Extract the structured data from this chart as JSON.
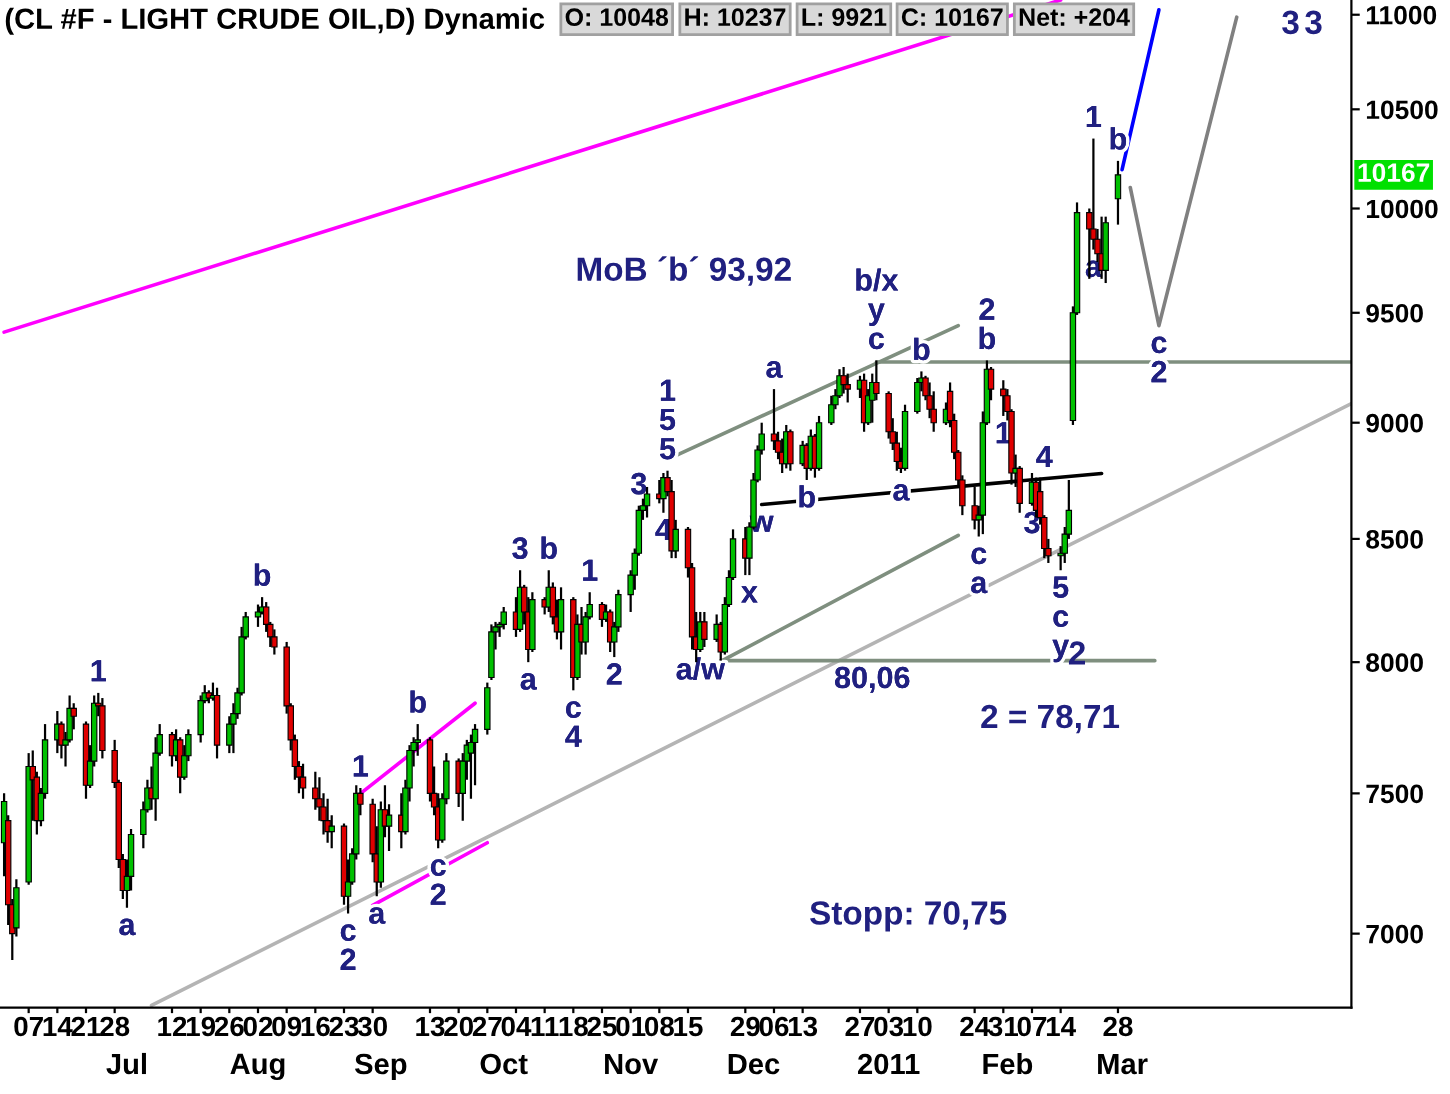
{
  "chart_data": {
    "type": "candlestick",
    "title": "(CL #F - LIGHT CRUDE OIL,D) Dynamic",
    "log": true,
    "legend": false,
    "grid": false,
    "ylim": [
      6750,
      11080
    ],
    "yticks": [
      7000,
      7500,
      8000,
      8500,
      9000,
      9500,
      10000,
      10500,
      11000
    ],
    "xlim": [
      "2010-05-31",
      "2011-04-26"
    ],
    "xticks": [
      {
        "value": "2010-06-07",
        "label": "07"
      },
      {
        "value": "2010-06-14",
        "label": "14"
      },
      {
        "value": "2010-06-21",
        "label": "21"
      },
      {
        "value": "2010-06-28",
        "label": "28"
      },
      {
        "value": "2010-07-12",
        "label": "12"
      },
      {
        "value": "2010-07-19",
        "label": "19"
      },
      {
        "value": "2010-07-26",
        "label": "26"
      },
      {
        "value": "2010-08-02",
        "label": "02"
      },
      {
        "value": "2010-08-09",
        "label": "09"
      },
      {
        "value": "2010-08-16",
        "label": "16"
      },
      {
        "value": "2010-08-23",
        "label": "23"
      },
      {
        "value": "2010-08-30",
        "label": "30"
      },
      {
        "value": "2010-09-13",
        "label": "13"
      },
      {
        "value": "2010-09-20",
        "label": "20"
      },
      {
        "value": "2010-09-27",
        "label": "27"
      },
      {
        "value": "2010-10-04",
        "label": "04"
      },
      {
        "value": "2010-10-11",
        "label": "11"
      },
      {
        "value": "2010-10-18",
        "label": "18"
      },
      {
        "value": "2010-10-25",
        "label": "25"
      },
      {
        "value": "2010-11-01",
        "label": "01"
      },
      {
        "value": "2010-11-08",
        "label": "08"
      },
      {
        "value": "2010-11-15",
        "label": "15"
      },
      {
        "value": "2010-11-29",
        "label": "29"
      },
      {
        "value": "2010-12-06",
        "label": "06"
      },
      {
        "value": "2010-12-13",
        "label": "13"
      },
      {
        "value": "2010-12-27",
        "label": "27"
      },
      {
        "value": "2011-01-03",
        "label": "03"
      },
      {
        "value": "2011-01-10",
        "label": "10"
      },
      {
        "value": "2011-01-24",
        "label": "24"
      },
      {
        "value": "2011-01-31",
        "label": "31"
      },
      {
        "value": "2011-02-07",
        "label": "07"
      },
      {
        "value": "2011-02-14",
        "label": "14"
      },
      {
        "value": "2011-02-28",
        "label": "28"
      }
    ],
    "x": [
      "2010-06-01",
      "2010-06-02",
      "2010-06-03",
      "2010-06-04",
      "2010-06-07",
      "2010-06-08",
      "2010-06-09",
      "2010-06-10",
      "2010-06-11",
      "2010-06-14",
      "2010-06-15",
      "2010-06-16",
      "2010-06-17",
      "2010-06-18",
      "2010-06-21",
      "2010-06-22",
      "2010-06-23",
      "2010-06-24",
      "2010-06-25",
      "2010-06-28",
      "2010-06-29",
      "2010-06-30",
      "2010-07-01",
      "2010-07-02",
      "2010-07-05",
      "2010-07-06",
      "2010-07-07",
      "2010-07-08",
      "2010-07-09",
      "2010-07-12",
      "2010-07-13",
      "2010-07-14",
      "2010-07-15",
      "2010-07-16",
      "2010-07-19",
      "2010-07-20",
      "2010-07-21",
      "2010-07-22",
      "2010-07-23",
      "2010-07-26",
      "2010-07-27",
      "2010-07-28",
      "2010-07-29",
      "2010-07-30",
      "2010-08-02",
      "2010-08-03",
      "2010-08-04",
      "2010-08-05",
      "2010-08-06",
      "2010-08-09",
      "2010-08-10",
      "2010-08-11",
      "2010-08-12",
      "2010-08-13",
      "2010-08-16",
      "2010-08-17",
      "2010-08-18",
      "2010-08-19",
      "2010-08-20",
      "2010-08-23",
      "2010-08-24",
      "2010-08-25",
      "2010-08-26",
      "2010-08-27",
      "2010-08-30",
      "2010-08-31",
      "2010-09-01",
      "2010-09-02",
      "2010-09-03",
      "2010-09-06",
      "2010-09-07",
      "2010-09-08",
      "2010-09-09",
      "2010-09-10",
      "2010-09-13",
      "2010-09-14",
      "2010-09-15",
      "2010-09-16",
      "2010-09-17",
      "2010-09-20",
      "2010-09-21",
      "2010-09-22",
      "2010-09-23",
      "2010-09-24",
      "2010-09-27",
      "2010-09-28",
      "2010-09-29",
      "2010-09-30",
      "2010-10-01",
      "2010-10-04",
      "2010-10-05",
      "2010-10-06",
      "2010-10-07",
      "2010-10-08",
      "2010-10-11",
      "2010-10-12",
      "2010-10-13",
      "2010-10-14",
      "2010-10-15",
      "2010-10-18",
      "2010-10-19",
      "2010-10-20",
      "2010-10-21",
      "2010-10-22",
      "2010-10-25",
      "2010-10-26",
      "2010-10-27",
      "2010-10-28",
      "2010-10-29",
      "2010-11-01",
      "2010-11-02",
      "2010-11-03",
      "2010-11-04",
      "2010-11-05",
      "2010-11-08",
      "2010-11-09",
      "2010-11-10",
      "2010-11-11",
      "2010-11-12",
      "2010-11-15",
      "2010-11-16",
      "2010-11-17",
      "2010-11-18",
      "2010-11-19",
      "2010-11-22",
      "2010-11-23",
      "2010-11-24",
      "2010-11-25",
      "2010-11-26",
      "2010-11-29",
      "2010-11-30",
      "2010-12-01",
      "2010-12-02",
      "2010-12-03",
      "2010-12-06",
      "2010-12-07",
      "2010-12-08",
      "2010-12-09",
      "2010-12-10",
      "2010-12-13",
      "2010-12-14",
      "2010-12-15",
      "2010-12-16",
      "2010-12-17",
      "2010-12-20",
      "2010-12-21",
      "2010-12-22",
      "2010-12-23",
      "2010-12-24",
      "2010-12-27",
      "2010-12-28",
      "2010-12-29",
      "2010-12-30",
      "2010-12-31",
      "2011-01-03",
      "2011-01-04",
      "2011-01-05",
      "2011-01-06",
      "2011-01-07",
      "2011-01-10",
      "2011-01-11",
      "2011-01-12",
      "2011-01-13",
      "2011-01-14",
      "2011-01-17",
      "2011-01-18",
      "2011-01-19",
      "2011-01-20",
      "2011-01-21",
      "2011-01-24",
      "2011-01-25",
      "2011-01-26",
      "2011-01-27",
      "2011-01-28",
      "2011-01-31",
      "2011-02-01",
      "2011-02-02",
      "2011-02-03",
      "2011-02-04",
      "2011-02-07",
      "2011-02-08",
      "2011-02-09",
      "2011-02-10",
      "2011-02-11",
      "2011-02-14",
      "2011-02-15",
      "2011-02-16",
      "2011-02-17",
      "2011-02-18",
      "2011-02-21",
      "2011-02-22",
      "2011-02-23",
      "2011-02-24",
      "2011-02-25",
      "2011-02-28"
    ],
    "ohlc": [
      [
        7320,
        7500,
        7200,
        7470
      ],
      [
        7400,
        7420,
        7030,
        7100
      ],
      [
        7100,
        7120,
        6910,
        7000
      ],
      [
        7020,
        7190,
        6990,
        7160
      ],
      [
        7180,
        7650,
        7170,
        7600
      ],
      [
        7600,
        7660,
        7400,
        7550
      ],
      [
        7560,
        7580,
        7350,
        7400
      ],
      [
        7400,
        7520,
        7380,
        7500
      ],
      [
        7500,
        7760,
        7480,
        7700
      ],
      [
        7700,
        7810,
        7650,
        7760
      ],
      [
        7760,
        7770,
        7630,
        7680
      ],
      [
        7680,
        7730,
        7600,
        7700
      ],
      [
        7700,
        7870,
        7690,
        7820
      ],
      [
        7820,
        7840,
        7740,
        7790
      ],
      [
        7760,
        7770,
        7480,
        7530
      ],
      [
        7530,
        7680,
        7520,
        7620
      ],
      [
        7620,
        7870,
        7600,
        7840
      ],
      [
        7840,
        7880,
        7790,
        7830
      ],
      [
        7830,
        7860,
        7630,
        7660
      ],
      [
        7660,
        7700,
        7520,
        7540
      ],
      [
        7540,
        7550,
        7230,
        7260
      ],
      [
        7260,
        7280,
        7120,
        7150
      ],
      [
        7150,
        7260,
        7090,
        7200
      ],
      [
        7200,
        7370,
        7150,
        7350
      ],
      [
        7350,
        7470,
        7300,
        7440
      ],
      [
        7440,
        7550,
        7430,
        7520
      ],
      [
        7520,
        7600,
        7440,
        7480
      ],
      [
        7480,
        7710,
        7400,
        7650
      ],
      [
        7650,
        7760,
        7640,
        7720
      ],
      [
        7720,
        7730,
        7600,
        7640
      ],
      [
        7640,
        7740,
        7620,
        7700
      ],
      [
        7700,
        7710,
        7500,
        7560
      ],
      [
        7560,
        7680,
        7550,
        7640
      ],
      [
        7640,
        7740,
        7620,
        7720
      ],
      [
        7720,
        7870,
        7690,
        7850
      ],
      [
        7850,
        7910,
        7840,
        7880
      ],
      [
        7880,
        7890,
        7840,
        7860
      ],
      [
        7860,
        7920,
        7850,
        7870
      ],
      [
        7870,
        7900,
        7630,
        7680
      ],
      [
        7680,
        7790,
        7650,
        7760
      ],
      [
        7760,
        7840,
        7650,
        7800
      ],
      [
        7800,
        7900,
        7780,
        7880
      ],
      [
        7880,
        8140,
        7870,
        8100
      ],
      [
        8100,
        8200,
        8090,
        8180
      ],
      [
        8180,
        8230,
        8140,
        8200
      ],
      [
        8200,
        8260,
        8190,
        8220
      ],
      [
        8220,
        8240,
        8120,
        8150
      ],
      [
        8150,
        8160,
        8060,
        8100
      ],
      [
        8100,
        8130,
        8030,
        8060
      ],
      [
        8060,
        8080,
        7800,
        7830
      ],
      [
        7830,
        7840,
        7660,
        7700
      ],
      [
        7700,
        7720,
        7550,
        7600
      ],
      [
        7600,
        7620,
        7500,
        7560
      ],
      [
        7560,
        7610,
        7480,
        7520
      ],
      [
        7520,
        7580,
        7440,
        7480
      ],
      [
        7480,
        7560,
        7400,
        7450
      ],
      [
        7450,
        7500,
        7350,
        7400
      ],
      [
        7400,
        7480,
        7320,
        7360
      ],
      [
        7360,
        7420,
        7300,
        7380
      ],
      [
        7380,
        7390,
        7100,
        7130
      ],
      [
        7130,
        7260,
        7070,
        7180
      ],
      [
        7180,
        7300,
        7170,
        7280
      ],
      [
        7280,
        7530,
        7260,
        7500
      ],
      [
        7500,
        7520,
        7420,
        7460
      ],
      [
        7460,
        7480,
        7250,
        7280
      ],
      [
        7280,
        7380,
        7130,
        7180
      ],
      [
        7180,
        7470,
        7160,
        7440
      ],
      [
        7440,
        7530,
        7340,
        7380
      ],
      [
        7380,
        7460,
        7290,
        7420
      ],
      [
        7420,
        7500,
        7300,
        7360
      ],
      [
        7360,
        7550,
        7350,
        7520
      ],
      [
        7520,
        7680,
        7470,
        7660
      ],
      [
        7660,
        7710,
        7600,
        7690
      ],
      [
        7690,
        7760,
        7640,
        7700
      ],
      [
        7700,
        7710,
        7470,
        7500
      ],
      [
        7500,
        7600,
        7420,
        7450
      ],
      [
        7450,
        7500,
        7300,
        7330
      ],
      [
        7330,
        7500,
        7320,
        7480
      ],
      [
        7480,
        7650,
        7460,
        7620
      ],
      [
        7620,
        7630,
        7450,
        7500
      ],
      [
        7500,
        7650,
        7400,
        7620
      ],
      [
        7620,
        7700,
        7550,
        7680
      ],
      [
        7650,
        7720,
        7480,
        7690
      ],
      [
        7690,
        7760,
        7530,
        7740
      ],
      [
        7740,
        7920,
        7720,
        7900
      ],
      [
        7940,
        8150,
        7930,
        8120
      ],
      [
        8120,
        8160,
        8050,
        8140
      ],
      [
        8140,
        8160,
        8100,
        8150
      ],
      [
        8150,
        8220,
        8130,
        8200
      ],
      [
        8200,
        8260,
        8100,
        8130
      ],
      [
        8130,
        8370,
        8120,
        8300
      ],
      [
        8300,
        8310,
        8150,
        8200
      ],
      [
        8200,
        8260,
        8000,
        8050
      ],
      [
        8050,
        8280,
        8040,
        8250
      ],
      [
        8250,
        8260,
        8190,
        8220
      ],
      [
        8220,
        8370,
        8200,
        8300
      ],
      [
        8300,
        8320,
        8150,
        8180
      ],
      [
        8180,
        8250,
        8090,
        8120
      ],
      [
        8120,
        8300,
        8050,
        8250
      ],
      [
        8250,
        8260,
        7890,
        7940
      ],
      [
        7940,
        8190,
        7930,
        8150
      ],
      [
        8150,
        8220,
        8030,
        8080
      ],
      [
        8080,
        8200,
        8030,
        8180
      ],
      [
        8180,
        8280,
        8170,
        8230
      ],
      [
        8230,
        8240,
        8140,
        8170
      ],
      [
        8170,
        8230,
        8160,
        8200
      ],
      [
        8200,
        8210,
        8040,
        8080
      ],
      [
        8080,
        8160,
        8020,
        8140
      ],
      [
        8140,
        8290,
        8120,
        8270
      ],
      [
        8270,
        8370,
        8200,
        8350
      ],
      [
        8350,
        8460,
        8290,
        8440
      ],
      [
        8440,
        8640,
        8430,
        8620
      ],
      [
        8620,
        8670,
        8580,
        8640
      ],
      [
        8640,
        8720,
        8590,
        8690
      ],
      [
        8690,
        8750,
        8650,
        8670
      ],
      [
        8670,
        8780,
        8610,
        8760
      ],
      [
        8760,
        8790,
        8680,
        8700
      ],
      [
        8700,
        8750,
        8420,
        8450
      ],
      [
        8450,
        8580,
        8420,
        8540
      ],
      [
        8540,
        8550,
        8340,
        8380
      ],
      [
        8380,
        8400,
        8050,
        8100
      ],
      [
        8100,
        8200,
        8000,
        8050
      ],
      [
        8050,
        8200,
        8040,
        8160
      ],
      [
        8160,
        8200,
        8060,
        8090
      ],
      [
        8090,
        8190,
        8080,
        8150
      ],
      [
        8150,
        8160,
        8006,
        8040
      ],
      [
        8040,
        8260,
        8030,
        8230
      ],
      [
        8230,
        8370,
        8220,
        8340
      ],
      [
        8340,
        8540,
        8330,
        8500
      ],
      [
        8500,
        8550,
        8350,
        8420
      ],
      [
        8420,
        8570,
        8350,
        8550
      ],
      [
        8550,
        8780,
        8540,
        8750
      ],
      [
        8750,
        8900,
        8740,
        8880
      ],
      [
        8880,
        9000,
        8860,
        8950
      ],
      [
        8950,
        9150,
        8880,
        8920
      ],
      [
        8920,
        8960,
        8840,
        8870
      ],
      [
        8870,
        8930,
        8780,
        8820
      ],
      [
        8820,
        8990,
        8800,
        8960
      ],
      [
        8960,
        8970,
        8790,
        8820
      ],
      [
        8820,
        8920,
        8810,
        8900
      ],
      [
        8900,
        8910,
        8750,
        8800
      ],
      [
        8800,
        8970,
        8790,
        8940
      ],
      [
        8940,
        8950,
        8760,
        8800
      ],
      [
        8800,
        9030,
        8790,
        9000
      ],
      [
        9000,
        9120,
        8990,
        9080
      ],
      [
        9080,
        9150,
        9060,
        9120
      ],
      [
        9120,
        9240,
        9110,
        9210
      ],
      [
        9210,
        9250,
        9130,
        9170
      ],
      [
        9170,
        9220,
        9090,
        9150
      ],
      [
        9150,
        9210,
        9110,
        9190
      ],
      [
        9190,
        9220,
        8960,
        9000
      ],
      [
        9000,
        9150,
        8990,
        9120
      ],
      [
        9100,
        9220,
        9000,
        9180
      ],
      [
        9180,
        9280,
        9100,
        9130
      ],
      [
        9130,
        9140,
        8930,
        8960
      ],
      [
        8960,
        9020,
        8880,
        8910
      ],
      [
        8910,
        8960,
        8790,
        8830
      ],
      [
        8830,
        8890,
        8780,
        8800
      ],
      [
        8800,
        9080,
        8790,
        9050
      ],
      [
        9050,
        9200,
        9040,
        9180
      ],
      [
        9180,
        9230,
        9140,
        9200
      ],
      [
        9200,
        9210,
        9100,
        9120
      ],
      [
        9120,
        9180,
        9020,
        9060
      ],
      [
        9060,
        9140,
        8960,
        9000
      ],
      [
        9000,
        9090,
        8990,
        9060
      ],
      [
        9140,
        9180,
        8980,
        9010
      ],
      [
        9010,
        9040,
        8840,
        8870
      ],
      [
        8870,
        8880,
        8720,
        8750
      ],
      [
        8750,
        8770,
        8600,
        8640
      ],
      [
        8640,
        8720,
        8540,
        8580
      ],
      [
        8580,
        8640,
        8510,
        8600
      ],
      [
        8600,
        9050,
        8520,
        9000
      ],
      [
        9000,
        9280,
        8990,
        9240
      ],
      [
        9240,
        9250,
        9100,
        9150
      ],
      [
        9150,
        9190,
        9030,
        9120
      ],
      [
        9120,
        9150,
        9010,
        9050
      ],
      [
        9050,
        9060,
        8730,
        8780
      ],
      [
        8780,
        8860,
        8720,
        8800
      ],
      [
        8800,
        8810,
        8610,
        8650
      ],
      [
        8650,
        8780,
        8640,
        8740
      ],
      [
        8740,
        8760,
        8590,
        8620
      ],
      [
        8700,
        8760,
        8560,
        8590
      ],
      [
        8590,
        8600,
        8420,
        8460
      ],
      [
        8460,
        8500,
        8400,
        8430
      ],
      [
        8430,
        8470,
        8370,
        8440
      ],
      [
        8440,
        8550,
        8400,
        8520
      ],
      [
        8520,
        8750,
        8500,
        8620
      ],
      [
        9010,
        9530,
        8990,
        9500
      ],
      [
        9500,
        10030,
        9490,
        9980
      ],
      [
        9980,
        10000,
        9660,
        9900
      ],
      [
        9900,
        10350,
        9800,
        9850
      ],
      [
        9850,
        9900,
        9740,
        9780
      ],
      [
        9780,
        9960,
        9660,
        9700
      ],
      [
        9700,
        9960,
        9640,
        9930
      ],
      [
        10048,
        10237,
        9921,
        10167
      ]
    ],
    "series": [
      {
        "type": "line",
        "color": "#ff00ff",
        "x": [
          "2010-06-01",
          "2011-02-14"
        ],
        "values": [
          9410,
          11080
        ]
      },
      {
        "type": "line",
        "color": "#b4b4b4",
        "x": [
          "2010-07-07",
          "2011-04-26"
        ],
        "values": [
          6757,
          9085
        ]
      },
      {
        "type": "line",
        "color": "#ff00ff",
        "x": [
          "2010-08-27",
          "2010-09-24"
        ],
        "values": [
          7499,
          7840
        ]
      },
      {
        "type": "line",
        "color": "#ff00ff",
        "x": [
          "2010-08-30",
          "2010-09-27"
        ],
        "values": [
          7098,
          7320
        ]
      },
      {
        "type": "line",
        "color": "#7f8f7f",
        "x": [
          "2010-11-10",
          "2011-01-20"
        ],
        "values": [
          8839,
          9440
        ]
      },
      {
        "type": "line",
        "color": "#7f8f7f",
        "x": [
          "2010-11-23",
          "2011-01-20"
        ],
        "values": [
          8003,
          8515
        ]
      },
      {
        "type": "line",
        "color": "#7f8f7f",
        "x": [
          "2010-11-23",
          "2011-03-09"
        ],
        "values": [
          8006,
          8006
        ]
      },
      {
        "type": "line",
        "color": "#7f8f7f",
        "x": [
          "2010-12-31",
          "2011-04-26"
        ],
        "values": [
          9273,
          9273
        ]
      },
      {
        "type": "line",
        "color": "#000000",
        "x": [
          "2010-12-03",
          "2011-02-24"
        ],
        "values": [
          8645,
          8778
        ]
      },
      {
        "type": "line",
        "color": "#0000ff",
        "x": [
          "2011-03-01",
          "2011-03-10"
        ],
        "values": [
          10193,
          11027
        ]
      },
      {
        "type": "line",
        "color": "#808080",
        "x": [
          "2011-03-03",
          "2011-03-10",
          "2011-03-29"
        ],
        "values": [
          10104,
          9440,
          10987
        ]
      }
    ],
    "x2lim": [
      "2010-05-31",
      "2011-04-26"
    ],
    "x2ticks": [
      {
        "value": "2010-07-01",
        "label": "Jul"
      },
      {
        "value": "2010-08-02",
        "label": "Aug"
      },
      {
        "value": "2010-09-01",
        "label": "Sep"
      },
      {
        "value": "2010-10-01",
        "label": "Oct"
      },
      {
        "value": "2010-11-01",
        "label": "Nov"
      },
      {
        "value": "2010-12-01",
        "label": "Dec"
      },
      {
        "value": "2011-01-03",
        "label": "2011"
      },
      {
        "value": "2011-02-01",
        "label": "Feb"
      },
      {
        "value": "2011-03-01",
        "label": "Mar"
      }
    ],
    "annotations": [
      "O: 10048",
      "H: 10237",
      "L: 9921",
      "C: 10167",
      "Net: +204",
      "MoB ´b´ 93,92",
      "Stopp: 70,75",
      "2 = 78,71",
      "3",
      "3",
      "2",
      {
        "text": "10167",
        "y": 10167
      },
      {
        "text": "1",
        "x": "2010-06-24",
        "y": 7880
      },
      {
        "text": "a",
        "x": "2010-07-01",
        "y": 7090
      },
      {
        "text": "b",
        "x": "2010-08-03",
        "y": 8260
      },
      {
        "text": "c",
        "x": "2010-08-24",
        "y": 7070
      },
      {
        "text": "2",
        "x": "2010-08-24",
        "y": 7070
      },
      {
        "text": "1",
        "x": "2010-08-27",
        "y": 7520
      },
      {
        "text": "a",
        "x": "2010-08-31",
        "y": 7130
      },
      {
        "text": "b",
        "x": "2010-09-10",
        "y": 7760
      },
      {
        "text": "c",
        "x": "2010-09-15",
        "y": 7300
      },
      {
        "text": "2",
        "x": "2010-09-15",
        "y": 7300
      },
      {
        "text": "3",
        "x": "2010-10-05",
        "y": 8370
      },
      {
        "text": "a",
        "x": "2010-10-07",
        "y": 8000
      },
      {
        "text": "b",
        "x": "2010-10-12",
        "y": 8370
      },
      {
        "text": "1",
        "x": "2010-10-22",
        "y": 8280
      },
      {
        "text": "c",
        "x": "2010-10-18",
        "y": 7890
      },
      {
        "text": "4",
        "x": "2010-10-18",
        "y": 7890
      },
      {
        "text": "2",
        "x": "2010-10-28",
        "y": 8020
      },
      {
        "text": "3",
        "x": "2010-11-03",
        "y": 8640
      },
      {
        "text": "4",
        "x": "2010-11-09",
        "y": 8610
      },
      {
        "text": "5",
        "x": "2010-11-10",
        "y": 8790
      },
      {
        "text": "5",
        "x": "2010-11-10",
        "y": 8790
      },
      {
        "text": "1",
        "x": "2010-11-10",
        "y": 8790
      },
      {
        "text": "a/w",
        "x": "2010-11-18",
        "y": 8040
      },
      {
        "text": "w",
        "x": "2010-12-03",
        "y": 8645
      },
      {
        "text": "x",
        "x": "2010-11-30",
        "y": 8350
      },
      {
        "text": "a",
        "x": "2010-12-06",
        "y": 9150
      },
      {
        "text": "b",
        "x": "2010-12-14",
        "y": 8750
      },
      {
        "text": "c",
        "x": "2010-12-31",
        "y": 9280
      },
      {
        "text": "y",
        "x": "2010-12-31",
        "y": 9280
      },
      {
        "text": "b/x",
        "x": "2010-12-31",
        "y": 9280
      },
      {
        "text": "b",
        "x": "2011-01-11",
        "y": 9230
      },
      {
        "text": "a",
        "x": "2011-01-06",
        "y": 8780
      },
      {
        "text": "80,06",
        "x": "2010-12-30",
        "y": 8006
      },
      {
        "text": "c",
        "x": "2011-01-25",
        "y": 8510
      },
      {
        "text": "a",
        "x": "2011-01-25",
        "y": 8510
      },
      {
        "text": "b",
        "x": "2011-01-27",
        "y": 9280
      },
      {
        "text": "2",
        "x": "2011-01-27",
        "y": 9280
      },
      {
        "text": "1",
        "x": "2011-01-31",
        "y": 9030
      },
      {
        "text": "4",
        "x": "2011-02-10",
        "y": 8756
      },
      {
        "text": "3",
        "x": "2011-02-07",
        "y": 8640
      },
      {
        "text": "5",
        "x": "2011-02-14",
        "y": 8370
      },
      {
        "text": "c",
        "x": "2011-02-14",
        "y": 8370
      },
      {
        "text": "y",
        "x": "2011-02-14",
        "y": 8370
      },
      {
        "text": "a",
        "x": "2011-02-22",
        "y": 9800
      },
      {
        "text": "1",
        "x": "2011-02-22",
        "y": 10350
      },
      {
        "text": "b",
        "x": "2011-02-28",
        "y": 10237
      },
      {
        "text": "c",
        "x": "2011-03-10",
        "y": 9440
      },
      {
        "text": "2",
        "x": "2011-03-10",
        "y": 9440
      }
    ]
  }
}
